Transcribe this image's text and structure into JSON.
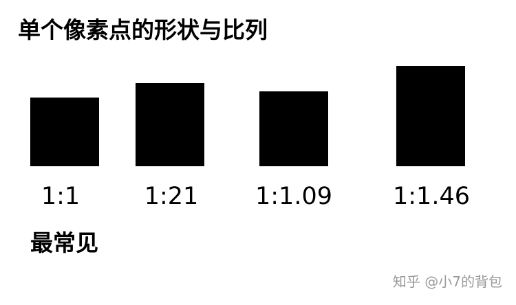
{
  "title": "单个像素点的形状与比列",
  "shapes": [
    {
      "ratio_label": "1:1"
    },
    {
      "ratio_label": "1:21"
    },
    {
      "ratio_label": "1:1.09"
    },
    {
      "ratio_label": "1:1.46"
    }
  ],
  "note": "最常见",
  "watermark": "知乎 @小7的背包",
  "colors": {
    "shape_fill": "#000000",
    "background": "#ffffff",
    "watermark": "#9a9a9a"
  }
}
